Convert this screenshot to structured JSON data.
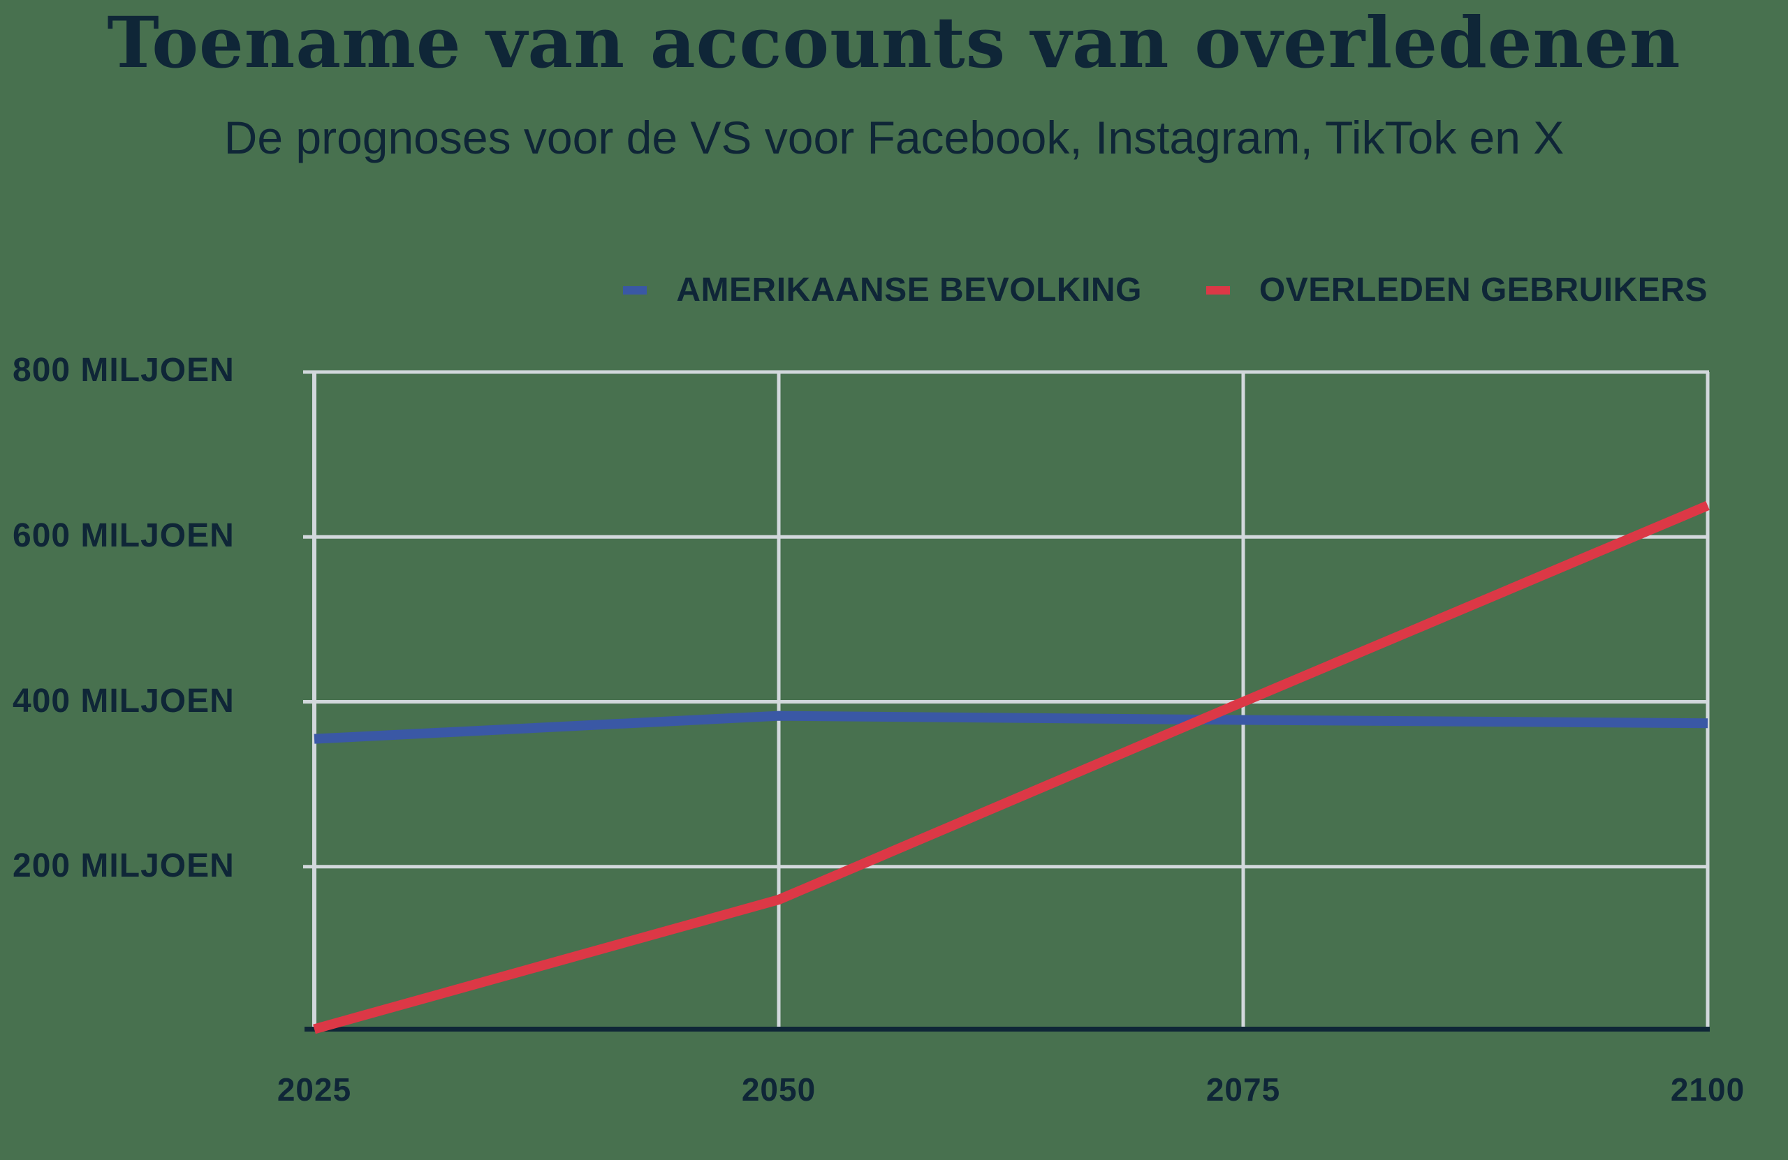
{
  "header": {
    "title": "Toename van accounts van overledenen",
    "subtitle": "De prognoses voor de VS voor Facebook, Instagram, TikTok en X"
  },
  "colors": {
    "background": "#48714F",
    "text": "#0F2637",
    "grid": "#D2D8DC",
    "axis": "#0F2637",
    "population_blue": "#3A58A5",
    "deceased_red": "#DC3846"
  },
  "chart_data": {
    "type": "line",
    "title": "Toename van accounts van overledenen",
    "subtitle": "De prognoses voor de VS voor Facebook, Instagram, TikTok en X",
    "unit": "miljoen",
    "x": [
      2025,
      2050,
      2075,
      2100
    ],
    "x_tick_labels": [
      "2025",
      "2050",
      "2075",
      "2100"
    ],
    "y_ticks": [
      {
        "value": 800,
        "label": "800 MILJOEN"
      },
      {
        "value": 600,
        "label": "600 MILJOEN"
      },
      {
        "value": 400,
        "label": "400 MILJOEN"
      },
      {
        "value": 200,
        "label": "200 MILJOEN"
      }
    ],
    "ylim": [
      0,
      800
    ],
    "grid": true,
    "legend_position": "top-right",
    "legend_items": [
      {
        "label": "AMERIKAANSE BEVOLKING",
        "color": "#3A58A5"
      },
      {
        "label": "OVERLEDEN GEBRUIKERS",
        "color": "#DC3846"
      }
    ],
    "series": [
      {
        "name": "AMERIKAANSE BEVOLKING",
        "color": "#3A58A5",
        "values": [
          355,
          383,
          378,
          374
        ]
      },
      {
        "name": "OVERLEDEN GEBRUIKERS",
        "color": "#DC3846",
        "values": [
          3,
          160,
          400,
          638
        ]
      }
    ]
  }
}
